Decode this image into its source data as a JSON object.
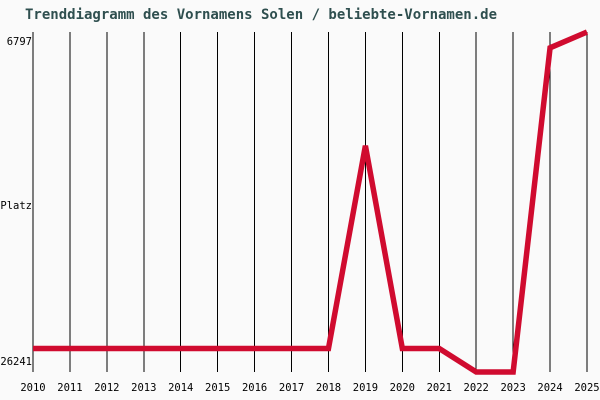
{
  "colors": {
    "background": "#fafafa",
    "line": "#d00b2f",
    "title_text": "#2f4f4f",
    "grid": "#000000",
    "axis_text": "#000000"
  },
  "yaxis": {
    "top_label": "6797",
    "title": "Platz",
    "bottom_label": "26241"
  },
  "chart_data": {
    "type": "line",
    "title": "Trenddiagramm des Vornamens Solen / beliebte-Vornamen.de",
    "x": [
      2010,
      2011,
      2012,
      2013,
      2014,
      2015,
      2016,
      2017,
      2018,
      2019,
      2020,
      2021,
      2022,
      2023,
      2024,
      2025
    ],
    "series": [
      {
        "name": "Solen",
        "values": [
          24900,
          24900,
          24900,
          24900,
          24900,
          24900,
          24900,
          24900,
          24900,
          13300,
          24900,
          24900,
          26241,
          26241,
          7700,
          6797
        ]
      }
    ],
    "xlabel": "",
    "ylabel": "Platz",
    "ylim": [
      6797,
      26241
    ],
    "y_axis_inverted": true,
    "y_tick_labels": [
      "6797",
      "26241"
    ],
    "grid": "vertical-only",
    "legend_position": "none"
  }
}
